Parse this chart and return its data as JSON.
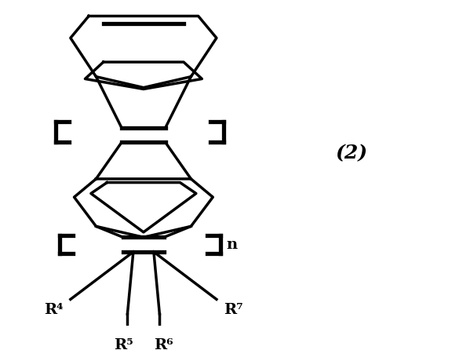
{
  "figure_width": 5.76,
  "figure_height": 4.46,
  "dpi": 100,
  "bg_color": "#ffffff",
  "line_color": "#000000",
  "lw": 2.5,
  "lw_bold": 3.8,
  "label_2": "(2)",
  "label_n": "n",
  "labels": [
    "R⁴",
    "R⁵",
    "R⁶",
    "R⁷"
  ],
  "fs_labels": 14,
  "fs_2": 18
}
